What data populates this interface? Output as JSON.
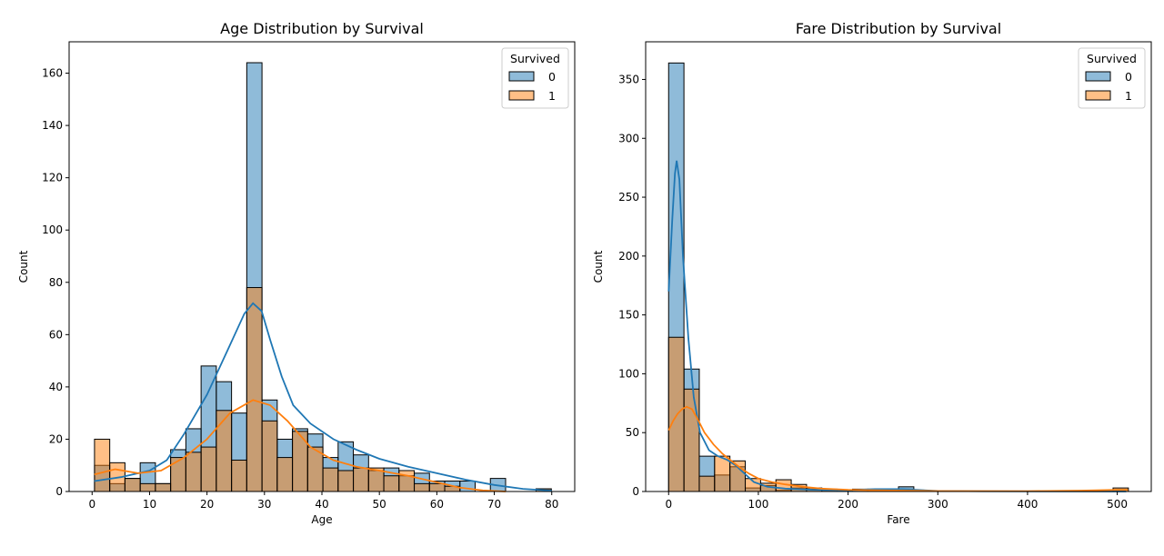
{
  "chart_data": [
    {
      "type": "histogram",
      "title": "Age Distribution by Survival",
      "xlabel": "Age",
      "ylabel": "Count",
      "xlim": [
        -4,
        84
      ],
      "ylim": [
        0,
        172
      ],
      "xticks": [
        0,
        10,
        20,
        30,
        40,
        50,
        60,
        70,
        80
      ],
      "yticks": [
        0,
        20,
        40,
        60,
        80,
        100,
        120,
        140,
        160
      ],
      "bins": {
        "start": 0.42,
        "width": 2.65,
        "count": 30
      },
      "legend": {
        "title": "Survived",
        "placement": "top-right"
      },
      "series": [
        {
          "name": "0",
          "color": "#1f77b4",
          "values": [
            10,
            3,
            5,
            11,
            3,
            16,
            24,
            48,
            42,
            30,
            164,
            35,
            20,
            24,
            22,
            13,
            19,
            14,
            8,
            9,
            6,
            7,
            4,
            4,
            4,
            0,
            5,
            0,
            0,
            1
          ],
          "kde": [
            [
              0.4,
              4
            ],
            [
              5,
              5.5
            ],
            [
              10,
              8
            ],
            [
              13,
              12
            ],
            [
              16,
              22
            ],
            [
              20,
              37
            ],
            [
              24,
              56
            ],
            [
              26.5,
              68
            ],
            [
              28,
              72
            ],
            [
              29.5,
              69
            ],
            [
              31,
              58
            ],
            [
              33,
              44
            ],
            [
              35,
              33
            ],
            [
              38,
              26
            ],
            [
              42,
              20
            ],
            [
              46,
              16
            ],
            [
              50,
              12.5
            ],
            [
              55,
              9.5
            ],
            [
              60,
              7
            ],
            [
              65,
              4.5
            ],
            [
              70,
              2.5
            ],
            [
              75,
              1
            ],
            [
              80,
              0.3
            ]
          ]
        },
        {
          "name": "1",
          "color": "#ff7f0e",
          "values": [
            20,
            11,
            5,
            3,
            3,
            13,
            15,
            17,
            31,
            12,
            78,
            27,
            13,
            23,
            17,
            9,
            8,
            9,
            9,
            6,
            8,
            3,
            3,
            2,
            0,
            0,
            0,
            0,
            0,
            1
          ],
          "kde": [
            [
              0.4,
              6.5
            ],
            [
              4,
              8.5
            ],
            [
              8,
              7
            ],
            [
              12,
              8
            ],
            [
              16,
              13
            ],
            [
              20,
              20
            ],
            [
              24,
              30
            ],
            [
              28,
              35
            ],
            [
              31,
              33
            ],
            [
              34,
              27
            ],
            [
              38,
              17
            ],
            [
              42,
              12
            ],
            [
              46,
              9.5
            ],
            [
              50,
              8
            ],
            [
              55,
              6
            ],
            [
              60,
              3.5
            ],
            [
              64,
              1.5
            ],
            [
              68,
              0.4
            ],
            [
              72,
              0
            ]
          ]
        }
      ]
    },
    {
      "type": "histogram",
      "title": "Fare Distribution by Survival",
      "xlabel": "Fare",
      "ylabel": "Count",
      "xlim": [
        -25.6,
        537.9
      ],
      "ylim": [
        0,
        382
      ],
      "xticks": [
        0,
        100,
        200,
        300,
        400,
        500
      ],
      "yticks": [
        0,
        50,
        100,
        150,
        200,
        250,
        300,
        350
      ],
      "bins": {
        "start": 0,
        "width": 17.08,
        "count": 30
      },
      "legend": {
        "title": "Survived",
        "placement": "top-right"
      },
      "series": [
        {
          "name": "0",
          "color": "#1f77b4",
          "values": [
            364,
            104,
            30,
            14,
            21,
            3,
            5,
            1,
            3,
            2,
            1,
            0,
            2,
            2,
            0,
            4,
            0,
            0,
            0,
            0,
            0,
            0,
            0,
            0,
            0,
            0,
            0,
            0,
            0,
            0
          ],
          "kde": [
            [
              0,
              170
            ],
            [
              4,
              230
            ],
            [
              7,
              270
            ],
            [
              9,
              281
            ],
            [
              12,
              265
            ],
            [
              16,
              200
            ],
            [
              22,
              130
            ],
            [
              28,
              80
            ],
            [
              35,
              50
            ],
            [
              45,
              35
            ],
            [
              55,
              30
            ],
            [
              65,
              27
            ],
            [
              75,
              22
            ],
            [
              85,
              15
            ],
            [
              95,
              8
            ],
            [
              110,
              4
            ],
            [
              130,
              2.5
            ],
            [
              160,
              1.5
            ],
            [
              200,
              1
            ],
            [
              230,
              2
            ],
            [
              260,
              2
            ],
            [
              300,
              0.5
            ],
            [
              350,
              0.2
            ],
            [
              510,
              0
            ]
          ]
        },
        {
          "name": "1",
          "color": "#ff7f0e",
          "values": [
            131,
            87,
            13,
            30,
            26,
            11,
            7,
            10,
            6,
            3,
            2,
            1,
            0,
            1,
            0,
            2,
            0,
            0,
            0,
            0,
            0,
            0,
            0,
            0,
            0,
            0,
            0,
            0,
            0,
            3
          ],
          "kde": [
            [
              0,
              52
            ],
            [
              5,
              60
            ],
            [
              10,
              66
            ],
            [
              15,
              70
            ],
            [
              20,
              72
            ],
            [
              26,
              70
            ],
            [
              32,
              62
            ],
            [
              40,
              50
            ],
            [
              50,
              40
            ],
            [
              60,
              32
            ],
            [
              70,
              26
            ],
            [
              80,
              20
            ],
            [
              90,
              15
            ],
            [
              100,
              11
            ],
            [
              115,
              8
            ],
            [
              130,
              6
            ],
            [
              150,
              4
            ],
            [
              170,
              2.5
            ],
            [
              200,
              1.5
            ],
            [
              230,
              1
            ],
            [
              260,
              0.8
            ],
            [
              300,
              0.4
            ],
            [
              400,
              0.3
            ],
            [
              460,
              0.8
            ],
            [
              500,
              1.5
            ],
            [
              512,
              1.5
            ]
          ]
        }
      ]
    }
  ]
}
